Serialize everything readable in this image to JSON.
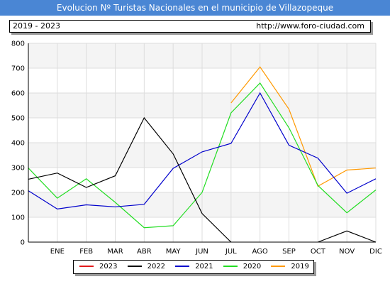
{
  "header": {
    "title": "Evolucion Nº Turistas Nacionales en el municipio de Villazopeque",
    "period": "2019 - 2023",
    "url": "http://www.foro-ciudad.com"
  },
  "chart_data": {
    "type": "line",
    "categories": [
      "ENE",
      "FEB",
      "MAR",
      "ABR",
      "MAY",
      "JUN",
      "JUL",
      "AGO",
      "SEP",
      "OCT",
      "NOV",
      "DIC"
    ],
    "ylim": [
      0,
      800
    ],
    "yticks": [
      0,
      100,
      200,
      300,
      400,
      500,
      600,
      700,
      800
    ],
    "grid": true,
    "legend_position": "bottom",
    "series": [
      {
        "name": "2023",
        "color": "#e31a1c",
        "values": [
          null,
          null,
          null,
          null,
          null,
          null,
          null,
          null,
          null,
          null,
          null,
          null
        ]
      },
      {
        "name": "2022",
        "color": "#000000",
        "values": [
          278,
          220,
          267,
          500,
          355,
          115,
          0,
          null,
          null,
          0,
          45,
          0
        ]
      },
      {
        "name": "2021",
        "color": "#0000cc",
        "values": [
          133,
          150,
          142,
          152,
          297,
          363,
          397,
          600,
          390,
          338,
          197,
          255
        ]
      },
      {
        "name": "2020",
        "color": "#22dd22",
        "values": [
          177,
          255,
          160,
          58,
          66,
          200,
          520,
          640,
          460,
          228,
          118,
          210
        ]
      },
      {
        "name": "2019",
        "color": "#ff9900",
        "values": [
          null,
          null,
          null,
          null,
          null,
          null,
          560,
          705,
          535,
          225,
          290,
          298
        ]
      }
    ],
    "series_start": {
      "2022": 253,
      "2021": 207,
      "2020": 298
    }
  }
}
